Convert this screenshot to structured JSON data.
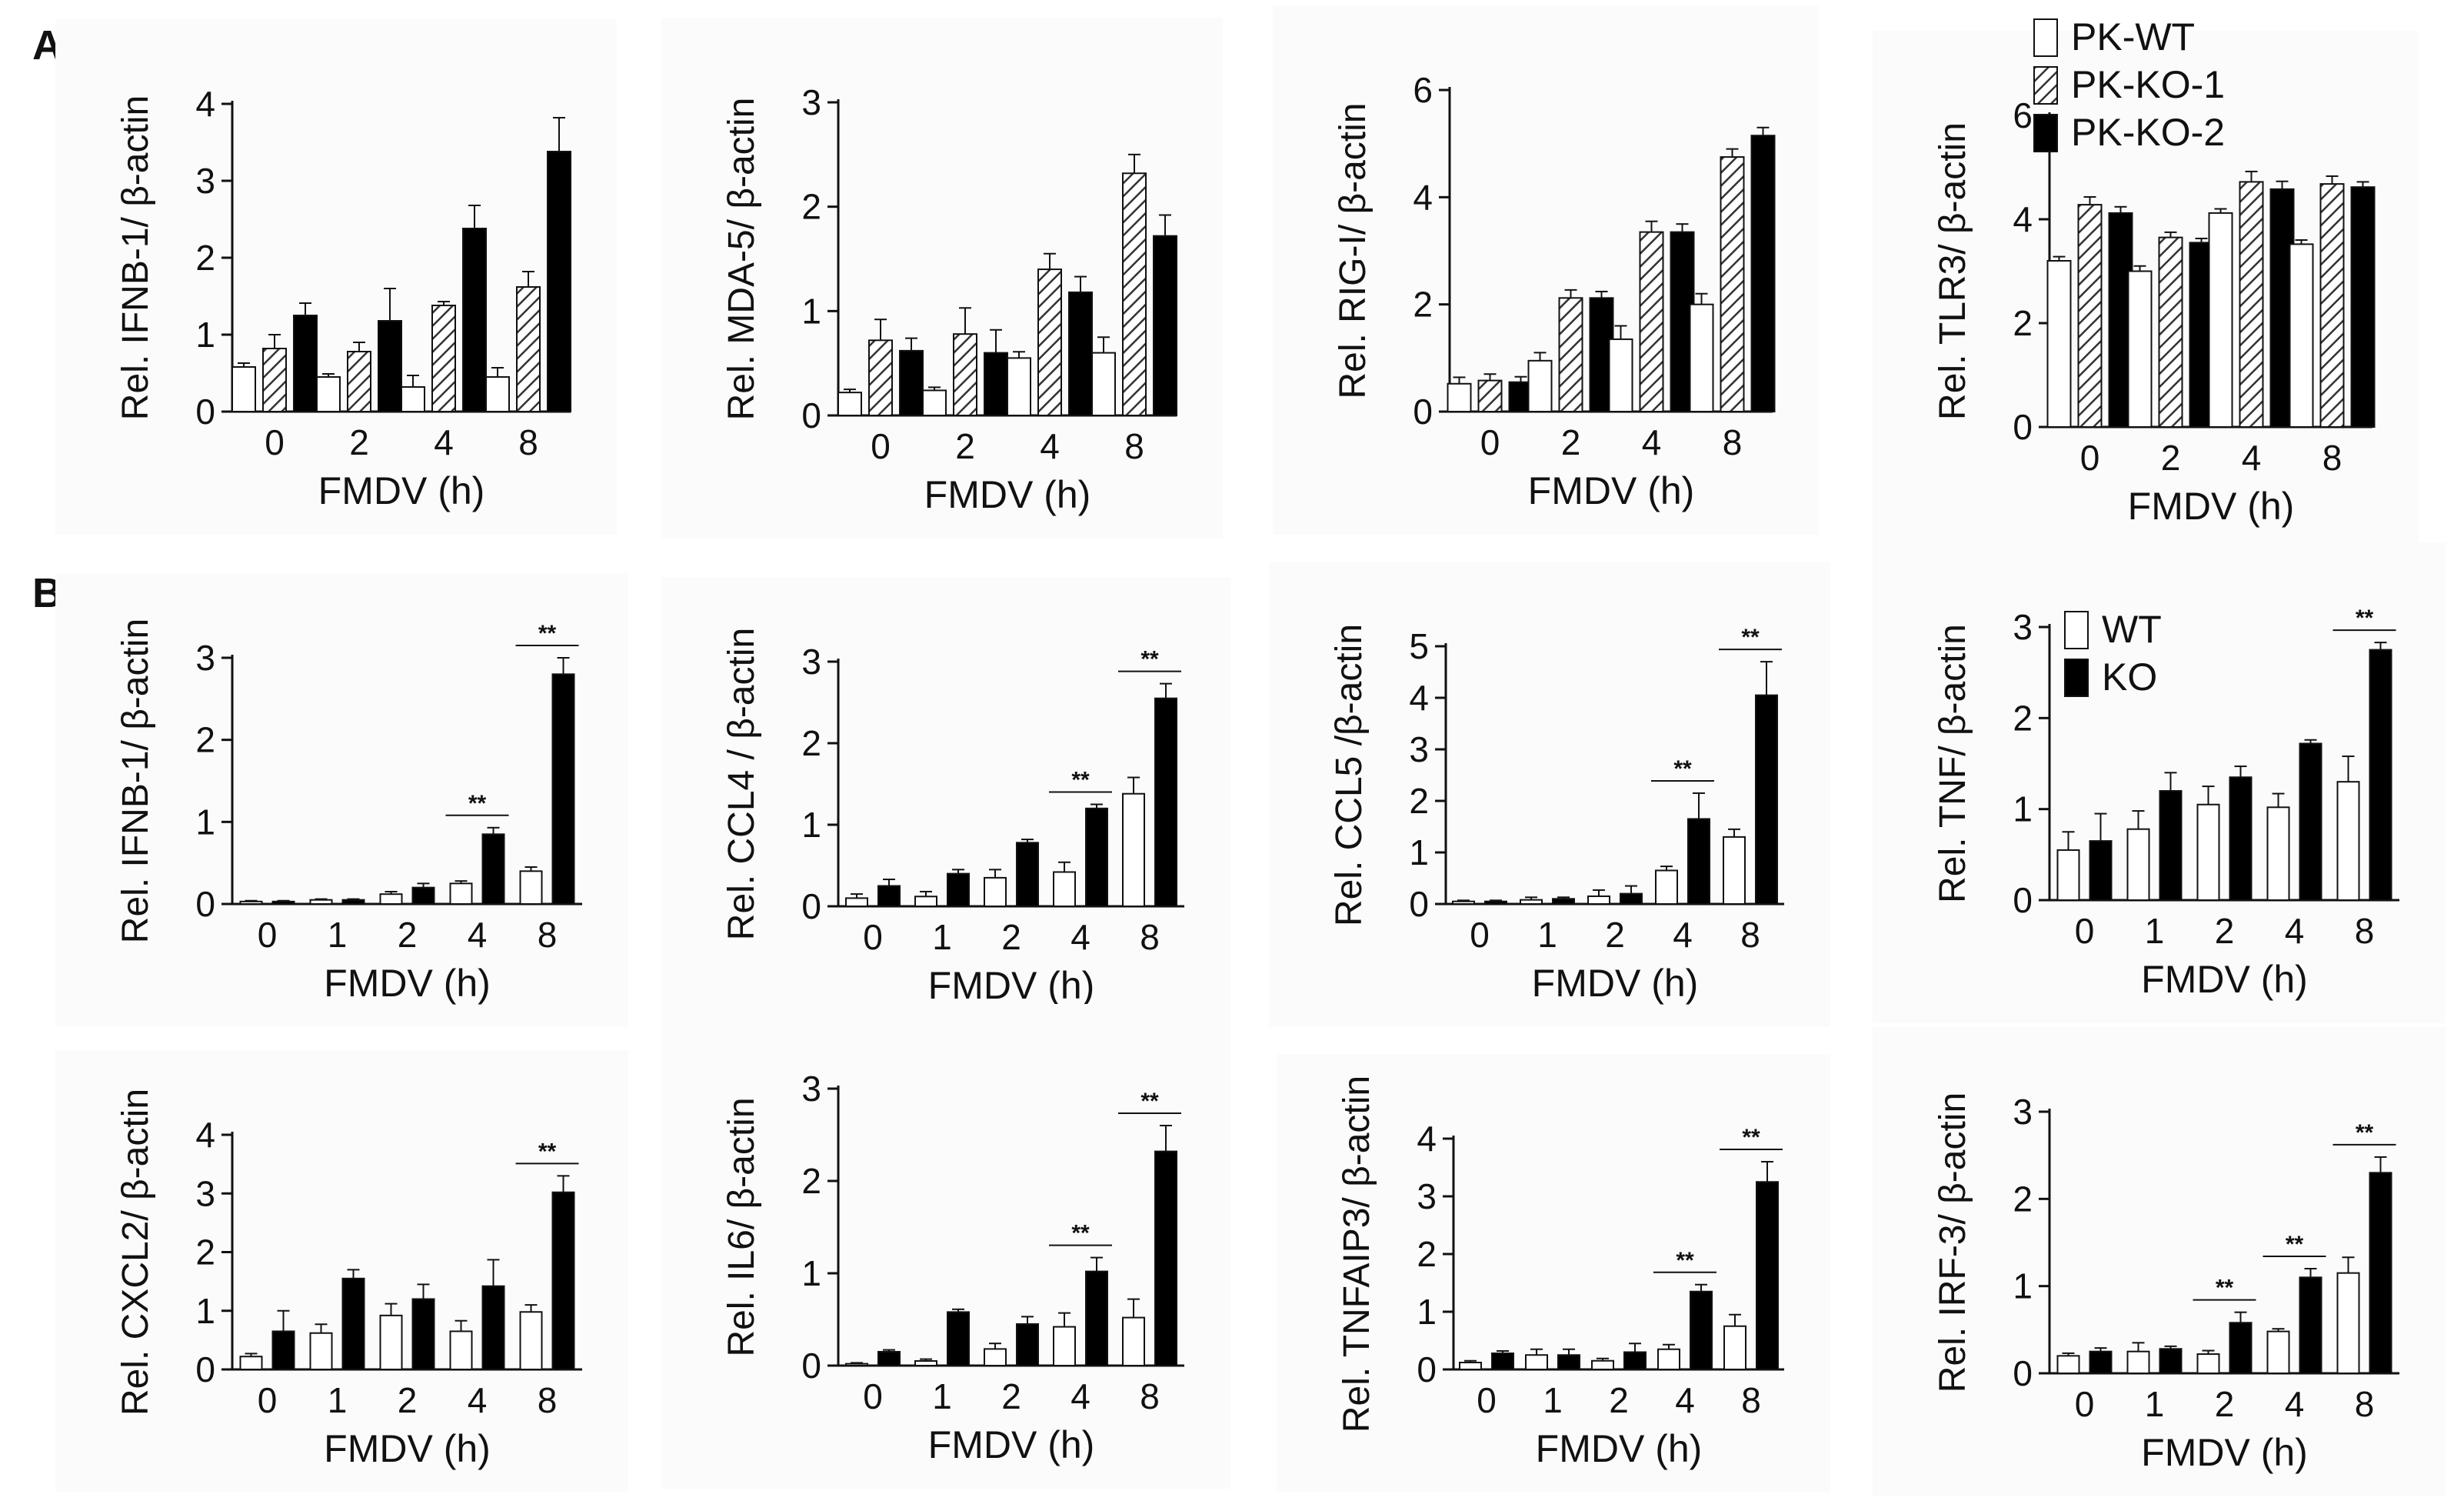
{
  "figure": {
    "panel_labels": [
      "A",
      "B"
    ],
    "colors": {
      "bar_edge": "#111111",
      "solid": "#000000",
      "open": "#ffffff",
      "hatch": "#333333"
    }
  },
  "chart_data": [
    {
      "id": "A1",
      "type": "bar",
      "xlabel": "FMDV (h)",
      "ylabel": "Rel. IFNB-1/ β-actin",
      "categories": [
        "0",
        "2",
        "4",
        "8"
      ],
      "ylim": [
        0,
        4
      ],
      "yticks": [
        "0",
        "1",
        "2",
        "3",
        "4"
      ],
      "series": [
        {
          "name": "PK-WT",
          "style": "open",
          "values": [
            0.58,
            0.45,
            0.32,
            0.45
          ],
          "errors": [
            0.05,
            0.04,
            0.15,
            0.12
          ]
        },
        {
          "name": "PK-KO-1",
          "style": "hatch",
          "values": [
            0.82,
            0.78,
            1.38,
            1.62
          ],
          "errors": [
            0.18,
            0.12,
            0.05,
            0.2
          ]
        },
        {
          "name": "PK-KO-2",
          "style": "solid",
          "values": [
            1.25,
            1.18,
            2.38,
            3.38
          ],
          "errors": [
            0.16,
            0.42,
            0.3,
            0.44
          ]
        }
      ]
    },
    {
      "id": "A2",
      "type": "bar",
      "xlabel": "FMDV (h)",
      "ylabel": "Rel. MDA-5/ β-actin",
      "categories": [
        "0",
        "2",
        "4",
        "8"
      ],
      "ylim": [
        0,
        3
      ],
      "yticks": [
        "0",
        "1",
        "2",
        "3"
      ],
      "series": [
        {
          "name": "PK-WT",
          "style": "open",
          "values": [
            0.22,
            0.24,
            0.55,
            0.6
          ],
          "errors": [
            0.03,
            0.03,
            0.06,
            0.15
          ]
        },
        {
          "name": "PK-KO-1",
          "style": "hatch",
          "values": [
            0.72,
            0.78,
            1.4,
            2.32
          ],
          "errors": [
            0.2,
            0.25,
            0.15,
            0.18
          ]
        },
        {
          "name": "PK-KO-2",
          "style": "solid",
          "values": [
            0.62,
            0.6,
            1.18,
            1.72
          ],
          "errors": [
            0.12,
            0.22,
            0.15,
            0.2
          ]
        }
      ]
    },
    {
      "id": "A3",
      "type": "bar",
      "xlabel": "FMDV (h)",
      "ylabel": "Rel. RIG-I/ β-actin",
      "categories": [
        "0",
        "2",
        "4",
        "8"
      ],
      "ylim": [
        0,
        6
      ],
      "yticks": [
        "0",
        "2",
        "4",
        "6"
      ],
      "series": [
        {
          "name": "PK-WT",
          "style": "open",
          "values": [
            0.52,
            0.95,
            1.35,
            2.0
          ],
          "errors": [
            0.12,
            0.15,
            0.25,
            0.2
          ]
        },
        {
          "name": "PK-KO-1",
          "style": "hatch",
          "values": [
            0.58,
            2.12,
            3.35,
            4.75
          ],
          "errors": [
            0.12,
            0.15,
            0.2,
            0.15
          ]
        },
        {
          "name": "PK-KO-2",
          "style": "solid",
          "values": [
            0.55,
            2.12,
            3.35,
            5.15
          ],
          "errors": [
            0.1,
            0.12,
            0.15,
            0.15
          ]
        }
      ]
    },
    {
      "id": "A4",
      "type": "bar",
      "xlabel": "FMDV (h)",
      "ylabel": "Rel. TLR3/ β-actin",
      "categories": [
        "0",
        "2",
        "4",
        "8"
      ],
      "ylim": [
        0,
        6
      ],
      "yticks": [
        "0",
        "2",
        "4",
        "6"
      ],
      "series": [
        {
          "name": "PK-WT",
          "style": "open",
          "values": [
            3.2,
            3.0,
            4.12,
            3.52
          ],
          "errors": [
            0.08,
            0.1,
            0.08,
            0.08
          ]
        },
        {
          "name": "PK-KO-1",
          "style": "hatch",
          "values": [
            4.28,
            3.65,
            4.72,
            4.68
          ],
          "errors": [
            0.15,
            0.1,
            0.2,
            0.15
          ]
        },
        {
          "name": "PK-KO-2",
          "style": "solid",
          "values": [
            4.12,
            3.55,
            4.58,
            4.62
          ],
          "errors": [
            0.12,
            0.08,
            0.15,
            0.1
          ]
        }
      ],
      "legend": {
        "position": "top-right",
        "entries": [
          "PK-WT",
          "PK-KO-1",
          "PK-KO-2"
        ]
      }
    },
    {
      "id": "B1",
      "type": "bar",
      "xlabel": "FMDV (h)",
      "ylabel": "Rel. IFNB-1/ β-actin",
      "categories": [
        "0",
        "1",
        "2",
        "4",
        "8"
      ],
      "ylim": [
        0,
        3
      ],
      "yticks": [
        "0",
        "1",
        "2",
        "3"
      ],
      "series": [
        {
          "name": "WT",
          "style": "open",
          "values": [
            0.03,
            0.05,
            0.12,
            0.25,
            0.4
          ],
          "errors": [
            0.01,
            0.01,
            0.03,
            0.03,
            0.05
          ]
        },
        {
          "name": "KO",
          "style": "solid",
          "values": [
            0.03,
            0.05,
            0.2,
            0.85,
            2.8
          ],
          "errors": [
            0.01,
            0.01,
            0.05,
            0.08,
            0.2
          ]
        }
      ],
      "significance": [
        {
          "category": "4",
          "label": "**"
        },
        {
          "category": "8",
          "label": "**"
        }
      ]
    },
    {
      "id": "B2",
      "type": "bar",
      "xlabel": "FMDV (h)",
      "ylabel": "Rel. CCL4 / β-actin",
      "categories": [
        "0",
        "1",
        "2",
        "4",
        "8"
      ],
      "ylim": [
        0,
        3
      ],
      "yticks": [
        "0",
        "1",
        "2",
        "3"
      ],
      "series": [
        {
          "name": "WT",
          "style": "open",
          "values": [
            0.1,
            0.12,
            0.35,
            0.42,
            1.38
          ],
          "errors": [
            0.05,
            0.06,
            0.1,
            0.12,
            0.2
          ]
        },
        {
          "name": "KO",
          "style": "solid",
          "values": [
            0.25,
            0.4,
            0.78,
            1.2,
            2.55
          ],
          "errors": [
            0.08,
            0.05,
            0.04,
            0.05,
            0.18
          ]
        }
      ],
      "significance": [
        {
          "category": "4",
          "label": "**"
        },
        {
          "category": "8",
          "label": "**"
        }
      ]
    },
    {
      "id": "B3",
      "type": "bar",
      "xlabel": "FMDV (h)",
      "ylabel": "Rel. CCL5 /β-actin",
      "categories": [
        "0",
        "1",
        "2",
        "4",
        "8"
      ],
      "ylim": [
        0,
        5
      ],
      "yticks": [
        "0",
        "1",
        "2",
        "3",
        "4",
        "5"
      ],
      "series": [
        {
          "name": "WT",
          "style": "open",
          "values": [
            0.05,
            0.08,
            0.15,
            0.65,
            1.3
          ],
          "errors": [
            0.02,
            0.05,
            0.12,
            0.08,
            0.15
          ]
        },
        {
          "name": "KO",
          "style": "solid",
          "values": [
            0.05,
            0.1,
            0.2,
            1.65,
            4.05
          ],
          "errors": [
            0.02,
            0.03,
            0.15,
            0.5,
            0.65
          ]
        }
      ],
      "significance": [
        {
          "category": "4",
          "label": "**"
        },
        {
          "category": "8",
          "label": "**"
        }
      ]
    },
    {
      "id": "B4",
      "type": "bar",
      "xlabel": "FMDV (h)",
      "ylabel": "Rel. TNF/ β-actin",
      "categories": [
        "0",
        "1",
        "2",
        "4",
        "8"
      ],
      "ylim": [
        0,
        3
      ],
      "yticks": [
        "0",
        "1",
        "2",
        "3"
      ],
      "series": [
        {
          "name": "WT",
          "style": "open",
          "values": [
            0.55,
            0.78,
            1.05,
            1.02,
            1.3
          ],
          "errors": [
            0.2,
            0.2,
            0.2,
            0.15,
            0.28
          ]
        },
        {
          "name": "KO",
          "style": "solid",
          "values": [
            0.65,
            1.2,
            1.35,
            1.72,
            2.75
          ],
          "errors": [
            0.3,
            0.2,
            0.12,
            0.04,
            0.08
          ]
        }
      ],
      "significance": [
        {
          "category": "8",
          "label": "**"
        }
      ],
      "legend": {
        "position": "top-left",
        "entries": [
          "WT",
          "KO"
        ]
      }
    },
    {
      "id": "B5",
      "type": "bar",
      "xlabel": "FMDV (h)",
      "ylabel": "Rel. CXCL2/ β-actin",
      "categories": [
        "0",
        "1",
        "2",
        "4",
        "8"
      ],
      "ylim": [
        0,
        4
      ],
      "yticks": [
        "0",
        "1",
        "2",
        "3",
        "4"
      ],
      "series": [
        {
          "name": "WT",
          "style": "open",
          "values": [
            0.22,
            0.62,
            0.92,
            0.65,
            0.98
          ],
          "errors": [
            0.05,
            0.15,
            0.2,
            0.18,
            0.12
          ]
        },
        {
          "name": "KO",
          "style": "solid",
          "values": [
            0.65,
            1.55,
            1.2,
            1.42,
            3.02
          ],
          "errors": [
            0.35,
            0.15,
            0.25,
            0.45,
            0.28
          ]
        }
      ],
      "significance": [
        {
          "category": "8",
          "label": "**"
        }
      ]
    },
    {
      "id": "B6",
      "type": "bar",
      "xlabel": "FMDV (h)",
      "ylabel": "Rel. IL6/ β-actin",
      "categories": [
        "0",
        "1",
        "2",
        "4",
        "8"
      ],
      "ylim": [
        0,
        3
      ],
      "yticks": [
        "0",
        "1",
        "2",
        "3"
      ],
      "series": [
        {
          "name": "WT",
          "style": "open",
          "values": [
            0.02,
            0.05,
            0.18,
            0.42,
            0.52
          ],
          "errors": [
            0.01,
            0.02,
            0.06,
            0.15,
            0.2
          ]
        },
        {
          "name": "KO",
          "style": "solid",
          "values": [
            0.15,
            0.58,
            0.45,
            1.02,
            2.32
          ],
          "errors": [
            0.02,
            0.03,
            0.08,
            0.15,
            0.28
          ]
        }
      ],
      "significance": [
        {
          "category": "4",
          "label": "**"
        },
        {
          "category": "8",
          "label": "**"
        }
      ]
    },
    {
      "id": "B7",
      "type": "bar",
      "xlabel": "FMDV (h)",
      "ylabel": "Rel. TNFAIP3/ β-actin",
      "categories": [
        "0",
        "1",
        "2",
        "4",
        "8"
      ],
      "ylim": [
        0,
        4
      ],
      "yticks": [
        "0",
        "1",
        "2",
        "3",
        "4"
      ],
      "series": [
        {
          "name": "WT",
          "style": "open",
          "values": [
            0.12,
            0.25,
            0.15,
            0.35,
            0.75
          ],
          "errors": [
            0.03,
            0.1,
            0.04,
            0.08,
            0.2
          ]
        },
        {
          "name": "KO",
          "style": "solid",
          "values": [
            0.28,
            0.25,
            0.3,
            1.35,
            3.25
          ],
          "errors": [
            0.04,
            0.1,
            0.15,
            0.12,
            0.35
          ]
        }
      ],
      "significance": [
        {
          "category": "4",
          "label": "**"
        },
        {
          "category": "8",
          "label": "**"
        }
      ]
    },
    {
      "id": "B8",
      "type": "bar",
      "xlabel": "FMDV (h)",
      "ylabel": "Rel. IRF-3/ β-actin",
      "categories": [
        "0",
        "1",
        "2",
        "4",
        "8"
      ],
      "ylim": [
        0,
        3
      ],
      "yticks": [
        "0",
        "1",
        "2",
        "3"
      ],
      "series": [
        {
          "name": "WT",
          "style": "open",
          "values": [
            0.2,
            0.25,
            0.22,
            0.48,
            1.15
          ],
          "errors": [
            0.03,
            0.1,
            0.04,
            0.03,
            0.18
          ]
        },
        {
          "name": "KO",
          "style": "solid",
          "values": [
            0.25,
            0.28,
            0.58,
            1.1,
            2.3
          ],
          "errors": [
            0.04,
            0.03,
            0.12,
            0.1,
            0.18
          ]
        }
      ],
      "significance": [
        {
          "category": "2",
          "label": "**"
        },
        {
          "category": "4",
          "label": "**"
        },
        {
          "category": "8",
          "label": "**"
        }
      ]
    }
  ]
}
